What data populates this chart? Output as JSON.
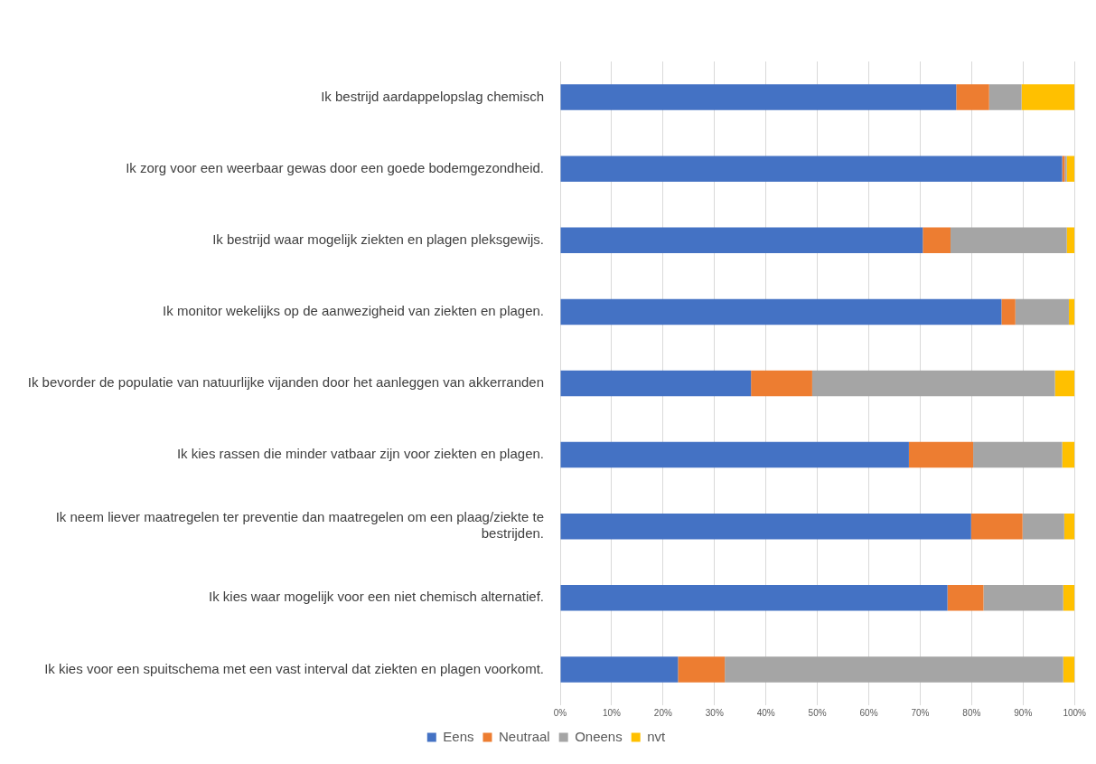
{
  "chart_data": {
    "type": "bar",
    "orientation": "horizontal",
    "stacked": true,
    "categories": [
      "Ik bestrijd aardappelopslag chemisch",
      "Ik zorg voor een weerbaar gewas door een goede bodemgezondheid.",
      "Ik bestrijd waar mogelijk ziekten en plagen pleksgewijs.",
      "Ik monitor wekelijks op de aanwezigheid van ziekten en plagen.",
      "Ik bevorder de populatie van natuurlijke vijanden door het aanleggen van akkerranden",
      "Ik kies rassen die minder vatbaar zijn voor ziekten en plagen.",
      "Ik neem liever maatregelen ter preventie dan maatregelen om een plaag/ziekte te bestrijden.",
      "Ik kies waar mogelijk voor een niet chemisch alternatief.",
      "Ik kies voor een spuitschema met een vast interval dat ziekten en plagen voorkomt."
    ],
    "series": [
      {
        "name": "Eens",
        "color": "#4472c4",
        "values": [
          77,
          97.6,
          70.5,
          85.8,
          37.1,
          67.8,
          79.9,
          75.3,
          22.9
        ]
      },
      {
        "name": "Neutraal",
        "color": "#ed7d31",
        "values": [
          6.4,
          0.5,
          5.4,
          2.7,
          11.9,
          12.5,
          10,
          7,
          9.1
        ]
      },
      {
        "name": "Oneens",
        "color": "#a5a5a5",
        "values": [
          6.3,
          0.4,
          22.6,
          10.4,
          47.2,
          17.3,
          8.1,
          15.5,
          65.8
        ]
      },
      {
        "name": "nvt",
        "color": "#ffc000",
        "values": [
          10.3,
          1.5,
          1.5,
          1.1,
          3.8,
          2.4,
          2,
          2.2,
          2.2
        ]
      }
    ],
    "xlim": [
      0,
      100
    ],
    "xticks": [
      {
        "value": 0,
        "label": "0%"
      },
      {
        "value": 10,
        "label": "10%"
      },
      {
        "value": 20,
        "label": "20%"
      },
      {
        "value": 30,
        "label": "30%"
      },
      {
        "value": 40,
        "label": "40%"
      },
      {
        "value": 50,
        "label": "50%"
      },
      {
        "value": 60,
        "label": "60%"
      },
      {
        "value": 70,
        "label": "70%"
      },
      {
        "value": 80,
        "label": "80%"
      },
      {
        "value": 90,
        "label": "90%"
      },
      {
        "value": 100,
        "label": "100%"
      }
    ],
    "grid": "x",
    "legend": "bottom"
  }
}
